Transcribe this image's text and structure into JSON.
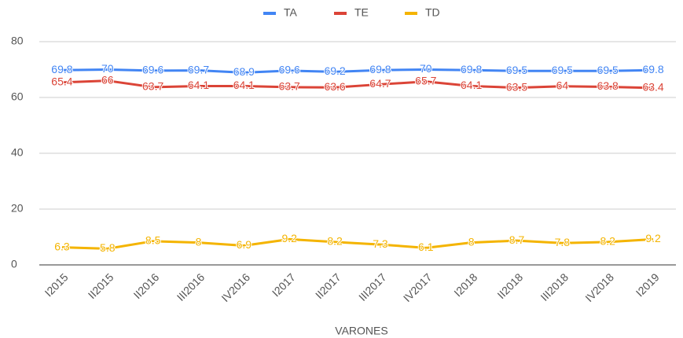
{
  "chart_data": {
    "type": "line",
    "x_label": "VARONES",
    "categories": [
      "I2015",
      "II2015",
      "II2016",
      "III2016",
      "IV2016",
      "I2017",
      "II2017",
      "III2017",
      "IV2017",
      "I2018",
      "II2018",
      "III2018",
      "IV2018",
      "I2019"
    ],
    "series": [
      {
        "name": "TA",
        "color": "#4285f4",
        "values": [
          69.8,
          70,
          69.6,
          69.7,
          68.9,
          69.6,
          69.2,
          69.8,
          70,
          69.8,
          69.5,
          69.5,
          69.5,
          69.8
        ]
      },
      {
        "name": "TE",
        "color": "#db4437",
        "values": [
          65.4,
          66,
          63.7,
          64.1,
          64.1,
          63.7,
          63.6,
          64.7,
          65.7,
          64.1,
          63.5,
          64,
          63.8,
          63.4
        ]
      },
      {
        "name": "TD",
        "color": "#f4b400",
        "values": [
          6.3,
          5.8,
          8.5,
          8,
          6.9,
          9.2,
          8.2,
          7.3,
          6.1,
          8,
          8.7,
          7.8,
          8.2,
          9.2
        ]
      }
    ],
    "ylim": [
      0,
      80
    ],
    "yticks": [
      0,
      20,
      40,
      60,
      80
    ],
    "grid": true,
    "legend": "top"
  }
}
